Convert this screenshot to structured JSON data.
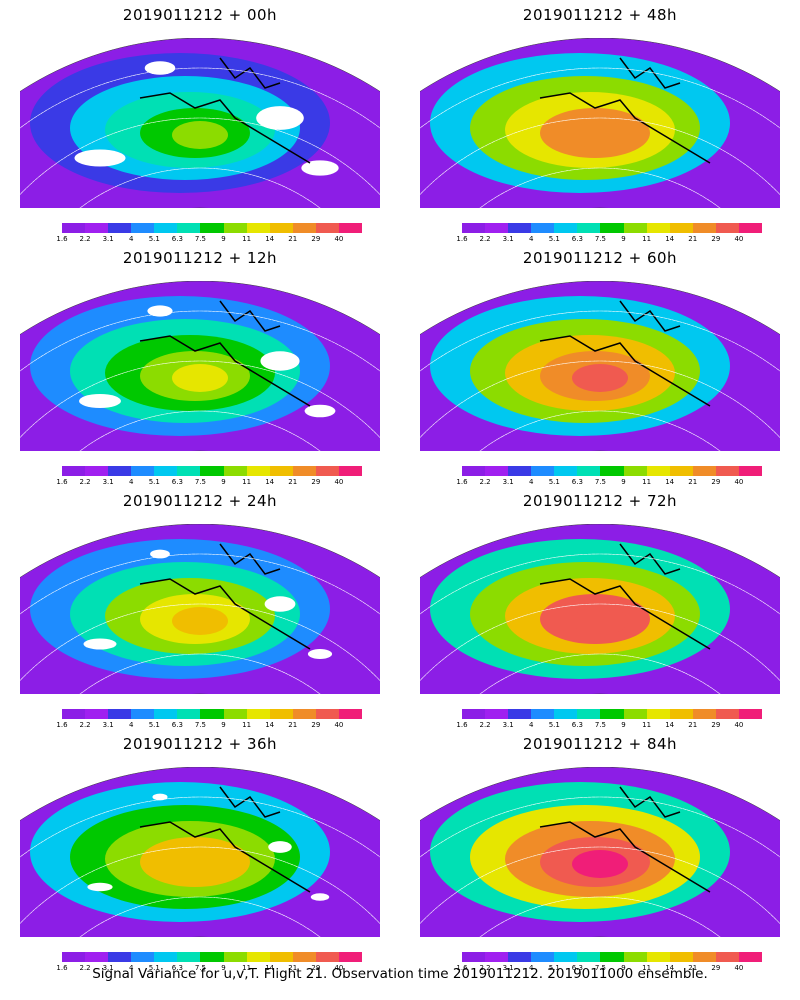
{
  "panels": [
    {
      "title": "2019011212 + 00h",
      "intensity": 0.15
    },
    {
      "title": "2019011212 + 48h",
      "intensity": 0.7
    },
    {
      "title": "2019011212 + 12h",
      "intensity": 0.3
    },
    {
      "title": "2019011212 + 60h",
      "intensity": 0.78
    },
    {
      "title": "2019011212 + 24h",
      "intensity": 0.45
    },
    {
      "title": "2019011212 + 72h",
      "intensity": 0.85
    },
    {
      "title": "2019011212 + 36h",
      "intensity": 0.58
    },
    {
      "title": "2019011212 + 84h",
      "intensity": 0.92
    }
  ],
  "colorbar": {
    "colors": [
      "#8c1ee6",
      "#a020f0",
      "#3a3ae6",
      "#1e8cff",
      "#00c8f0",
      "#00e0b4",
      "#00c800",
      "#8cdc00",
      "#e6e600",
      "#f0be00",
      "#f08c28",
      "#f05a50",
      "#f01e78"
    ],
    "labels": [
      "1.6",
      "2.2",
      "3.1",
      "4",
      "5.1",
      "6.3",
      "7.5",
      "9",
      "11",
      "14",
      "21",
      "29",
      "40"
    ]
  },
  "footer": "Signal Variance for u,v,T. Flight 21. Observation time 2019011212. 2019011000 ensemble."
}
